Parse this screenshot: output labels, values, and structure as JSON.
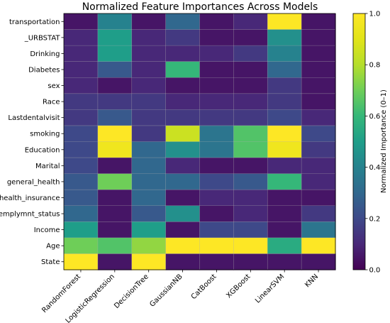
{
  "chart_data": {
    "type": "heatmap",
    "title": "Normalized Feature Importances Across Models",
    "columns": [
      "RandomForest",
      "LogisticRegression",
      "DecisionTree",
      "GaussianNB",
      "CatBoost",
      "XGBoost",
      "LinearSVM",
      "KNN"
    ],
    "rows": [
      "transportation",
      "_URBSTAT",
      "Drinking",
      "Diabetes",
      "sex",
      "Race",
      "Lastdentalvisit",
      "smoking",
      "Education",
      "Marital",
      "general_health",
      "health_insurance",
      "emplymnt_status",
      "Income",
      "Age",
      "State"
    ],
    "values": [
      [
        0.05,
        0.4,
        0.05,
        0.3,
        0.05,
        0.1,
        1.0,
        0.05
      ],
      [
        0.1,
        0.5,
        0.1,
        0.15,
        0.05,
        0.05,
        0.45,
        0.05
      ],
      [
        0.1,
        0.5,
        0.1,
        0.1,
        0.1,
        0.15,
        0.4,
        0.05
      ],
      [
        0.1,
        0.25,
        0.1,
        0.6,
        0.05,
        0.05,
        0.3,
        0.05
      ],
      [
        0.1,
        0.05,
        0.1,
        0.05,
        0.05,
        0.05,
        0.15,
        0.05
      ],
      [
        0.15,
        0.15,
        0.15,
        0.1,
        0.1,
        0.1,
        0.15,
        0.05
      ],
      [
        0.15,
        0.25,
        0.15,
        0.15,
        0.15,
        0.15,
        0.2,
        0.1
      ],
      [
        0.2,
        1.0,
        0.15,
        0.85,
        0.35,
        0.65,
        1.0,
        0.2
      ],
      [
        0.2,
        0.95,
        0.3,
        0.45,
        0.35,
        0.65,
        0.95,
        0.15
      ],
      [
        0.2,
        0.05,
        0.3,
        0.1,
        0.05,
        0.05,
        0.1,
        0.1
      ],
      [
        0.25,
        0.7,
        0.3,
        0.3,
        0.2,
        0.25,
        0.6,
        0.1
      ],
      [
        0.25,
        0.05,
        0.3,
        0.05,
        0.1,
        0.1,
        0.05,
        0.05
      ],
      [
        0.3,
        0.05,
        0.25,
        0.45,
        0.05,
        0.1,
        0.05,
        0.15
      ],
      [
        0.5,
        0.05,
        0.5,
        0.05,
        0.2,
        0.2,
        0.05,
        0.35
      ],
      [
        0.7,
        0.65,
        0.75,
        1.0,
        1.0,
        1.0,
        0.55,
        1.0
      ],
      [
        1.0,
        0.05,
        1.0,
        0.05,
        0.05,
        0.05,
        0.05,
        0.05
      ]
    ],
    "colormap": "viridis",
    "vmin": 0.0,
    "vmax": 1.0,
    "colorbar": {
      "label": "Normalized Importance (0–1)",
      "ticks": [
        "0.0",
        "0.2",
        "0.4",
        "0.6",
        "0.8",
        "1.0"
      ]
    },
    "grid": true
  }
}
